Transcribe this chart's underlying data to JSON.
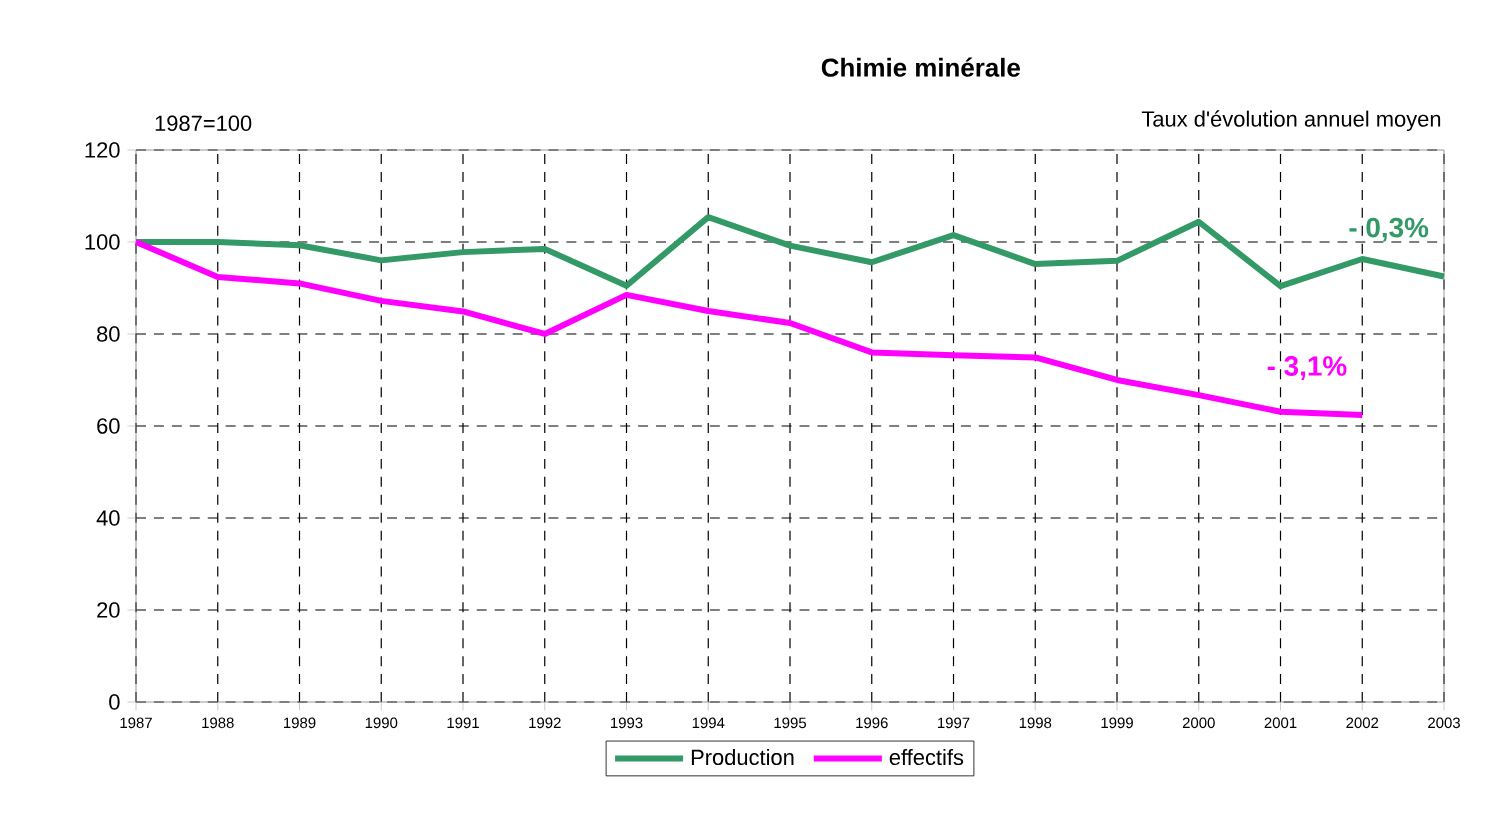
{
  "chart_data": {
    "type": "line",
    "title": "Chimie minérale",
    "x": [
      1987,
      1988,
      1989,
      1990,
      1991,
      1992,
      1993,
      1994,
      1995,
      1996,
      1997,
      1998,
      1999,
      2000,
      2001,
      2002,
      2003
    ],
    "series": [
      {
        "name": "Production",
        "color": "#339966",
        "values": [
          100,
          100,
          99.3,
          96,
          97.8,
          98.5,
          90.5,
          105.4,
          99.2,
          95.6,
          101.5,
          95.2,
          95.9,
          104.4,
          90.4,
          96.3,
          92.5
        ]
      },
      {
        "name": "effectifs",
        "color": "#ff00ff",
        "values": [
          100,
          92.4,
          91,
          87.2,
          84.9,
          80,
          88.5,
          85,
          82.4,
          76,
          75.4,
          74.9,
          70,
          66.7,
          63.1,
          62.4,
          null
        ]
      }
    ],
    "xlim": [
      1987,
      2003
    ],
    "xticks": [
      1987,
      1988,
      1989,
      1990,
      1991,
      1992,
      1993,
      1994,
      1995,
      1996,
      1997,
      1998,
      1999,
      2000,
      2001,
      2002,
      2003
    ],
    "ylim": [
      0,
      120
    ],
    "yticks": [
      0,
      20,
      40,
      60,
      80,
      100,
      120
    ],
    "grid": true,
    "legend": "bottom",
    "marker": "none",
    "line_style": "solid",
    "annotations": [
      "1987=100",
      "Taux d'évolution annuel moyen",
      "- 0,3%",
      "- 3,1%"
    ]
  }
}
